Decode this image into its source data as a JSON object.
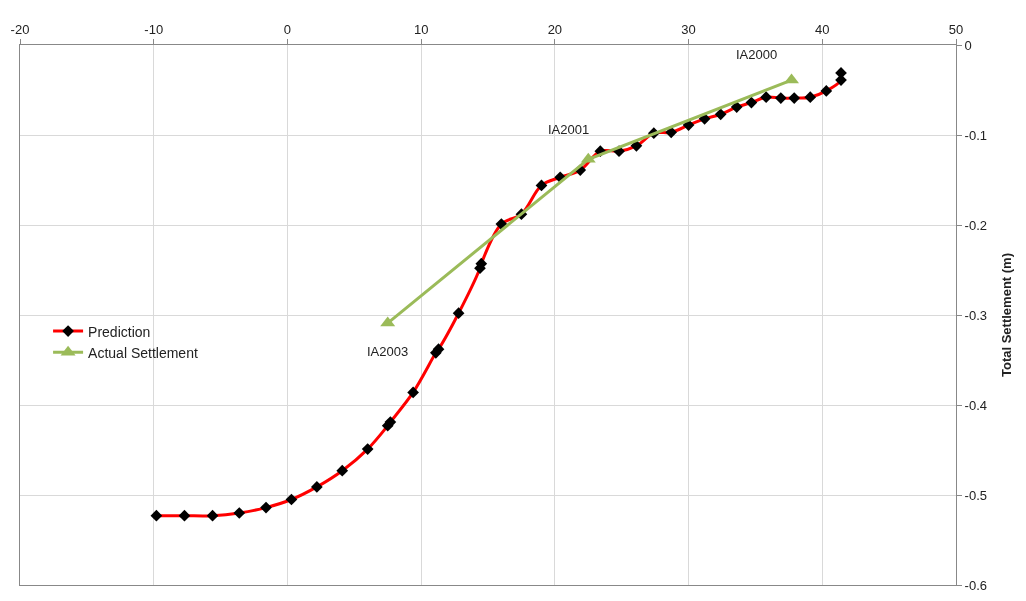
{
  "chart_data": {
    "type": "line",
    "ylabel": "Total Settlement (m)",
    "xlim": [
      -20,
      50
    ],
    "xticks": [
      -20,
      -10,
      0,
      10,
      20,
      30,
      40,
      50
    ],
    "ylim": [
      -0.6,
      0
    ],
    "yticks": [
      -0.6,
      -0.5,
      -0.4,
      -0.3,
      -0.2,
      -0.1,
      0
    ],
    "grid": true,
    "legend": "left",
    "series": [
      {
        "name": "Prediction",
        "color": "#ff0000",
        "marker": "diamond",
        "x": [
          -9.8,
          -7.7,
          -5.6,
          -3.6,
          -1.6,
          0.3,
          2.2,
          4.1,
          6.0,
          7.5,
          7.7,
          9.4,
          11.1,
          11.3,
          12.8,
          14.4,
          14.5,
          16.0,
          17.5,
          19.0,
          20.4,
          21.9,
          23.4,
          24.8,
          26.1,
          27.4,
          28.7,
          30.0,
          31.2,
          32.4,
          33.6,
          34.7,
          35.8,
          36.9,
          37.9,
          39.1,
          40.3,
          41.4,
          41.4
        ],
        "values": [
          -0.523,
          -0.523,
          -0.523,
          -0.52,
          -0.514,
          -0.505,
          -0.491,
          -0.473,
          -0.449,
          -0.423,
          -0.419,
          -0.386,
          -0.342,
          -0.338,
          -0.298,
          -0.248,
          -0.243,
          -0.199,
          -0.188,
          -0.156,
          -0.147,
          -0.139,
          -0.118,
          -0.118,
          -0.112,
          -0.098,
          -0.097,
          -0.089,
          -0.082,
          -0.077,
          -0.069,
          -0.064,
          -0.058,
          -0.059,
          -0.059,
          -0.058,
          -0.051,
          -0.039,
          -0.031
        ]
      },
      {
        "name": "Actual Settlement",
        "color": "#9bbb59",
        "marker": "triangle",
        "x": [
          7.5,
          22.5,
          37.7
        ],
        "values": [
          -0.309,
          -0.127,
          -0.039
        ]
      }
    ],
    "annotations": [
      {
        "text": "IA2003",
        "x": 7.5,
        "y": -0.309
      },
      {
        "text": "IA2001",
        "x": 22.5,
        "y": -0.127
      },
      {
        "text": "IA2000",
        "x": 37.7,
        "y": -0.039
      }
    ]
  }
}
